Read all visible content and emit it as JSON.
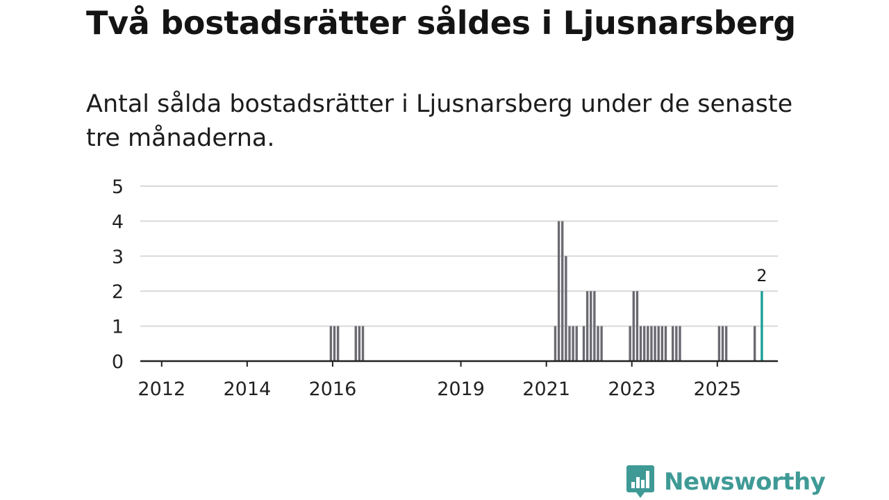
{
  "title": "Två bostadsrätter såldes i Ljusnarsberg",
  "subtitle": "Antal sålda bostadsrätter i Ljusnarsberg under de senaste tre månaderna.",
  "brand": {
    "name": "Newsworthy",
    "color": "#3f9a96"
  },
  "colors": {
    "bar": "#6b6a72",
    "highlight": "#1a9e96",
    "grid": "#d9d9d9",
    "axis": "#222222"
  },
  "chart_data": {
    "type": "bar",
    "title": "Antal sålda bostadsrätter i Ljusnarsberg",
    "xlabel": "",
    "ylabel": "",
    "ylim": [
      0,
      5
    ],
    "grid": true,
    "x_unit": "month",
    "x_range": [
      "2011-07",
      "2026-06"
    ],
    "yticks": [
      0,
      1,
      2,
      3,
      4,
      5
    ],
    "xticks": [
      {
        "label": "2012",
        "month": "2012-01"
      },
      {
        "label": "2014",
        "month": "2014-01"
      },
      {
        "label": "2016",
        "month": "2016-01"
      },
      {
        "label": "2019",
        "month": "2019-01"
      },
      {
        "label": "2021",
        "month": "2021-01"
      },
      {
        "label": "2023",
        "month": "2023-01"
      },
      {
        "label": "2025",
        "month": "2025-01"
      }
    ],
    "series": [
      {
        "name": "Sålda bostadsrätter",
        "points": [
          {
            "month": "2015-12",
            "value": 1
          },
          {
            "month": "2016-01",
            "value": 1
          },
          {
            "month": "2016-02",
            "value": 1
          },
          {
            "month": "2016-07",
            "value": 1
          },
          {
            "month": "2016-08",
            "value": 1
          },
          {
            "month": "2016-09",
            "value": 1
          },
          {
            "month": "2021-03",
            "value": 1
          },
          {
            "month": "2021-04",
            "value": 4
          },
          {
            "month": "2021-05",
            "value": 4
          },
          {
            "month": "2021-06",
            "value": 3
          },
          {
            "month": "2021-07",
            "value": 1
          },
          {
            "month": "2021-08",
            "value": 1
          },
          {
            "month": "2021-09",
            "value": 1
          },
          {
            "month": "2021-11",
            "value": 1
          },
          {
            "month": "2021-12",
            "value": 2
          },
          {
            "month": "2022-01",
            "value": 2
          },
          {
            "month": "2022-02",
            "value": 2
          },
          {
            "month": "2022-03",
            "value": 1
          },
          {
            "month": "2022-04",
            "value": 1
          },
          {
            "month": "2022-12",
            "value": 1
          },
          {
            "month": "2023-01",
            "value": 2
          },
          {
            "month": "2023-02",
            "value": 2
          },
          {
            "month": "2023-03",
            "value": 1
          },
          {
            "month": "2023-04",
            "value": 1
          },
          {
            "month": "2023-05",
            "value": 1
          },
          {
            "month": "2023-06",
            "value": 1
          },
          {
            "month": "2023-07",
            "value": 1
          },
          {
            "month": "2023-08",
            "value": 1
          },
          {
            "month": "2023-09",
            "value": 1
          },
          {
            "month": "2023-10",
            "value": 1
          },
          {
            "month": "2023-12",
            "value": 1
          },
          {
            "month": "2024-01",
            "value": 1
          },
          {
            "month": "2024-02",
            "value": 1
          },
          {
            "month": "2025-01",
            "value": 1
          },
          {
            "month": "2025-02",
            "value": 1
          },
          {
            "month": "2025-03",
            "value": 1
          },
          {
            "month": "2025-11",
            "value": 1
          },
          {
            "month": "2026-01",
            "value": 2,
            "highlight": true,
            "label": "2"
          }
        ]
      }
    ]
  }
}
